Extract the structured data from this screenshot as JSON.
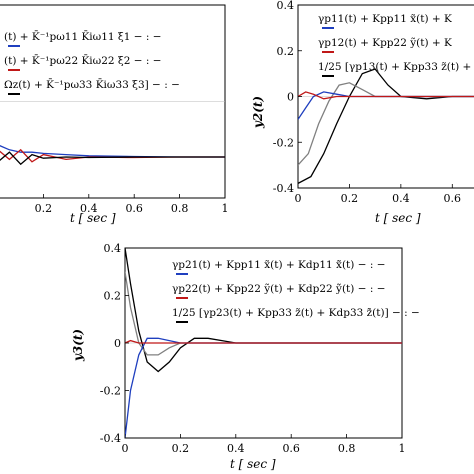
{
  "chart_data": [
    {
      "type": "line",
      "panel": "top-left",
      "xlabel": "t  [ sec ]",
      "ylabel": "",
      "xlim": [
        0,
        1
      ],
      "ylim": [
        -0.4,
        0.4
      ],
      "xticks": [
        "0.2",
        "0.4",
        "0.6",
        "0.8",
        "1"
      ],
      "legend_entries": [
        {
          "text": "(t) + K̄⁻¹pω11 K̄iω11 ξ1 − : −",
          "color": "#1f3fbf"
        },
        {
          "text": "(t) + K̄⁻¹pω22 K̄iω22 ξ2 − : −",
          "color": "#c01818"
        },
        {
          "text": "Ωz(t) + K̄⁻¹pω33 K̄iω33 ξ3] − : −",
          "color": "#000000"
        }
      ],
      "series": [
        {
          "color": "#1f3fbf",
          "x": [
            0,
            0.05,
            0.1,
            0.15,
            0.2,
            0.3,
            0.4,
            0.6,
            0.8,
            1.0
          ],
          "y": [
            -0.18,
            -0.2,
            -0.21,
            -0.21,
            -0.215,
            -0.22,
            -0.225,
            -0.228,
            -0.23,
            -0.23
          ]
        },
        {
          "color": "#c01818",
          "x": [
            0,
            0.05,
            0.1,
            0.15,
            0.2,
            0.3,
            0.4,
            0.6,
            0.8,
            1.0
          ],
          "y": [
            -0.2,
            -0.24,
            -0.2,
            -0.25,
            -0.22,
            -0.24,
            -0.23,
            -0.232,
            -0.23,
            -0.23
          ]
        },
        {
          "color": "#000000",
          "x": [
            0,
            0.05,
            0.1,
            0.15,
            0.2,
            0.3,
            0.4,
            0.6,
            0.8,
            1.0
          ],
          "y": [
            -0.25,
            -0.21,
            -0.26,
            -0.22,
            -0.235,
            -0.23,
            -0.232,
            -0.23,
            -0.23,
            -0.23
          ]
        }
      ]
    },
    {
      "type": "line",
      "panel": "top-right",
      "xlabel": "t  [ sec ]",
      "ylabel": "y2(t)",
      "xlim": [
        0,
        0.7
      ],
      "ylim": [
        -0.4,
        0.4
      ],
      "xticks": [
        "0",
        "0.2",
        "0.4",
        "0.6"
      ],
      "yticks": [
        "0.4",
        "0.2",
        "0",
        "-0.2",
        "-0.4"
      ],
      "legend_entries": [
        {
          "text": "γp11(t) + Kpp11 x̃(t) + K",
          "color": "#1f3fbf"
        },
        {
          "text": "γp12(t) + Kpp22 ỹ(t) + K",
          "color": "#c01818"
        },
        {
          "text": "1/25 [γp13(t) + Kpp33 z̃(t) + K",
          "color": "#000000"
        }
      ],
      "series": [
        {
          "color": "#000000",
          "x": [
            0,
            0.05,
            0.1,
            0.15,
            0.2,
            0.25,
            0.3,
            0.35,
            0.4,
            0.5,
            0.6,
            0.7
          ],
          "y": [
            -0.38,
            -0.35,
            -0.25,
            -0.12,
            0.0,
            0.1,
            0.12,
            0.05,
            0.0,
            -0.01,
            0.0,
            0.0
          ]
        },
        {
          "color": "#808080",
          "x": [
            0,
            0.04,
            0.08,
            0.12,
            0.16,
            0.2,
            0.25,
            0.3,
            0.4,
            0.5,
            0.7
          ],
          "y": [
            -0.3,
            -0.25,
            -0.12,
            -0.02,
            0.05,
            0.06,
            0.03,
            0.0,
            0.0,
            0.0,
            0.0
          ]
        },
        {
          "color": "#1f3fbf",
          "x": [
            0,
            0.03,
            0.06,
            0.1,
            0.15,
            0.2,
            0.3,
            0.4,
            0.5,
            0.7
          ],
          "y": [
            -0.1,
            -0.05,
            0.0,
            0.02,
            0.01,
            0.0,
            0.0,
            0.0,
            0.0,
            0.0
          ]
        },
        {
          "color": "#c01818",
          "x": [
            0,
            0.03,
            0.06,
            0.1,
            0.15,
            0.2,
            0.3,
            0.4,
            0.5,
            0.7
          ],
          "y": [
            0.0,
            0.02,
            0.01,
            -0.01,
            0.0,
            0.0,
            0.0,
            0.0,
            0.0,
            0.0
          ]
        }
      ]
    },
    {
      "type": "line",
      "panel": "bottom",
      "xlabel": "t  [ sec ]",
      "ylabel": "y3(t)",
      "xlim": [
        0,
        1
      ],
      "ylim": [
        -0.4,
        0.4
      ],
      "xticks": [
        "0",
        "0.2",
        "0.4",
        "0.6",
        "0.8",
        "1"
      ],
      "yticks": [
        "0.4",
        "0.2",
        "0",
        "-0.2",
        "-0.4"
      ],
      "legend_entries": [
        {
          "text": "γp21(t) + Kpp11 x̃(t) + Kdp11 x̃̇(t) − : −",
          "color": "#1f3fbf"
        },
        {
          "text": "γp22(t) + Kpp22 ỹ(t) + Kdp22 ỹ̇(t) − : −",
          "color": "#c01818"
        },
        {
          "text": "1/25 [γp23(t) + Kpp33 z̃(t) + Kdp33 z̃̇(t)] − : −",
          "color": "#000000"
        }
      ],
      "series": [
        {
          "color": "#000000",
          "x": [
            0,
            0.02,
            0.05,
            0.08,
            0.12,
            0.16,
            0.2,
            0.25,
            0.3,
            0.35,
            0.4,
            0.5,
            0.6,
            1.0
          ],
          "y": [
            0.4,
            0.25,
            0.05,
            -0.08,
            -0.12,
            -0.08,
            -0.02,
            0.02,
            0.02,
            0.01,
            0.0,
            0.0,
            0.0,
            0.0
          ]
        },
        {
          "color": "#808080",
          "x": [
            0,
            0.02,
            0.05,
            0.08,
            0.12,
            0.16,
            0.2,
            0.3,
            0.4,
            1.0
          ],
          "y": [
            0.3,
            0.15,
            0.0,
            -0.05,
            -0.05,
            -0.02,
            0.0,
            0.0,
            0.0,
            0.0
          ]
        },
        {
          "color": "#1f3fbf",
          "x": [
            0,
            0.02,
            0.05,
            0.08,
            0.12,
            0.2,
            0.3,
            0.4,
            1.0
          ],
          "y": [
            -0.4,
            -0.2,
            -0.05,
            0.02,
            0.02,
            0.0,
            0.0,
            0.0,
            0.0
          ]
        },
        {
          "color": "#c01818",
          "x": [
            0,
            0.02,
            0.05,
            0.1,
            0.2,
            0.3,
            1.0
          ],
          "y": [
            0.0,
            0.01,
            0.0,
            0.0,
            0.0,
            0.0,
            0.0
          ]
        }
      ]
    }
  ]
}
